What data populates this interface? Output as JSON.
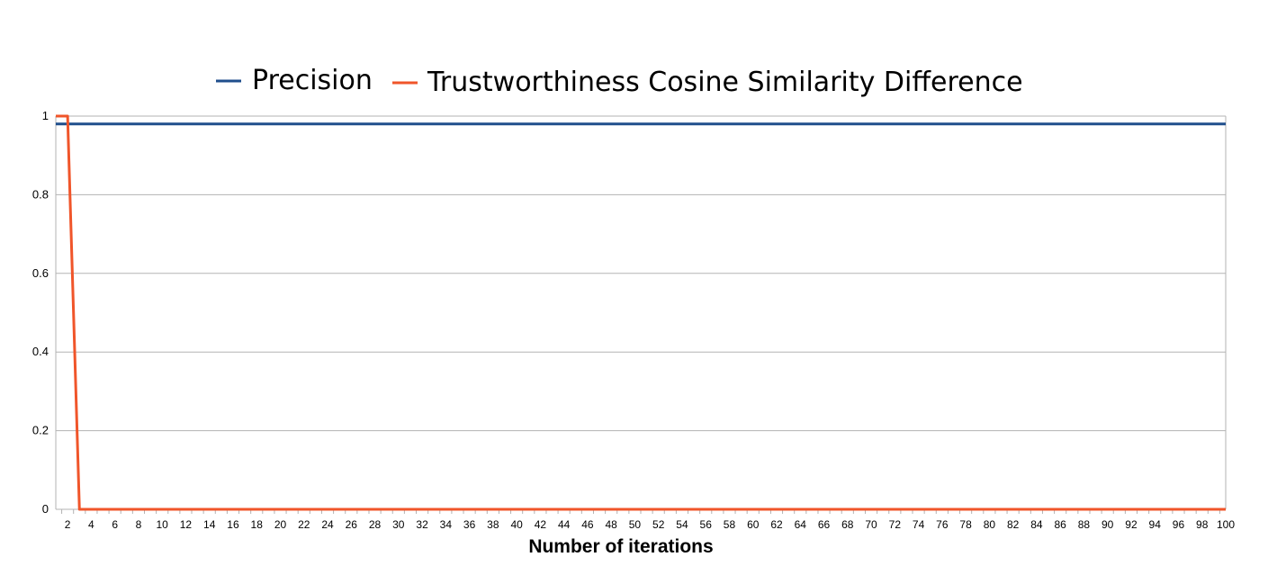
{
  "chart_data": {
    "type": "line",
    "title": "",
    "xlabel": "Number of iterations",
    "ylabel": "",
    "x_range": [
      1,
      100
    ],
    "ylim": [
      0,
      1
    ],
    "y_ticks": [
      "0",
      "0.2",
      "0.4",
      "0.6",
      "0.8",
      "1"
    ],
    "x_tick_step": 2,
    "grid": "horizontal",
    "legend_position": "top",
    "series": [
      {
        "name": "Precision",
        "color": "#1f4e8c",
        "points": [
          [
            1,
            0.98
          ],
          [
            100,
            0.98
          ]
        ]
      },
      {
        "name": "Trustworthiness Cosine Similarity Difference",
        "color": "#f0552a",
        "points": [
          [
            1,
            1
          ],
          [
            2,
            1
          ],
          [
            3,
            0
          ],
          [
            100,
            0
          ]
        ]
      }
    ]
  }
}
